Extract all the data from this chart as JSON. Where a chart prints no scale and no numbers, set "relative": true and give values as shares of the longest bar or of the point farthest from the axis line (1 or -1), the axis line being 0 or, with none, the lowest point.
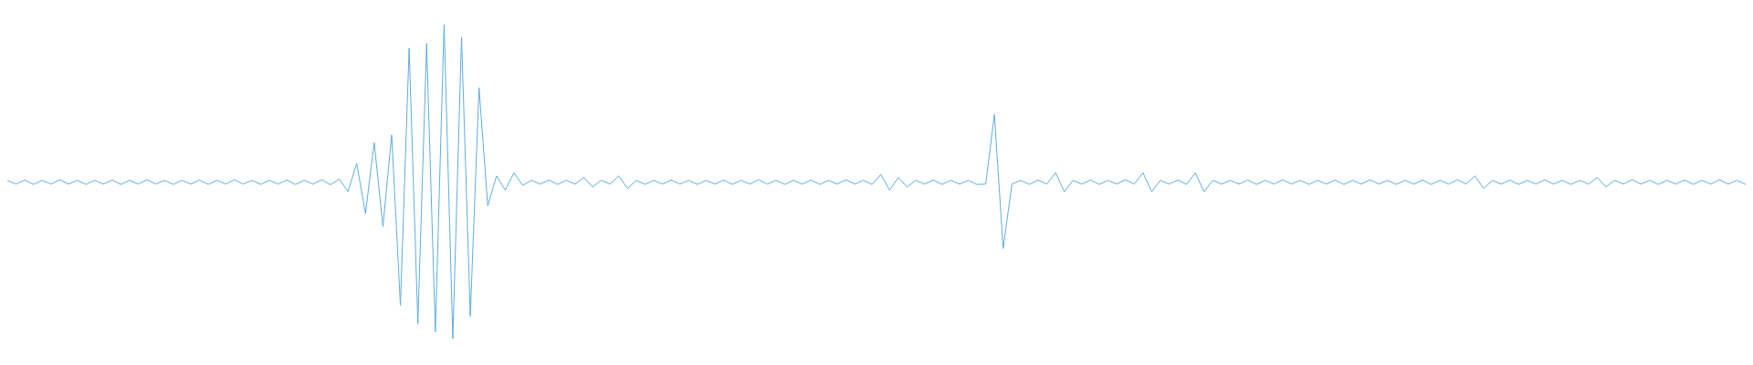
{
  "chart_data": {
    "type": "line",
    "relative": true,
    "categories": [
      null,
      null,
      null,
      null,
      null,
      null,
      null,
      null,
      null,
      null,
      null,
      null,
      null,
      null,
      null,
      null,
      null,
      null,
      null,
      null,
      null,
      null,
      null,
      null,
      null,
      null,
      null,
      null,
      null,
      null,
      null,
      null,
      null,
      null,
      null,
      null,
      null,
      null,
      null,
      null,
      null,
      null,
      null,
      null,
      null,
      null,
      null,
      null,
      null,
      null,
      null,
      null,
      null,
      null,
      null,
      null,
      null,
      null,
      null,
      null,
      null,
      null,
      null,
      null,
      null,
      null,
      null,
      null,
      null,
      null,
      null,
      null,
      null,
      null,
      null,
      null,
      null,
      null,
      null,
      null,
      null,
      null,
      null,
      null,
      null,
      null,
      null,
      null,
      null,
      null,
      null,
      null,
      null,
      null,
      null,
      null,
      null,
      null,
      null,
      null,
      null,
      null,
      null,
      null,
      null,
      null,
      null,
      null,
      null,
      null,
      null,
      null,
      null,
      null,
      null,
      null,
      null,
      null,
      null,
      null,
      null,
      null,
      null,
      null,
      null,
      null,
      null,
      null,
      null,
      null,
      null,
      null,
      null,
      null,
      null,
      null,
      null,
      null,
      null,
      null,
      null,
      null,
      null,
      null,
      null,
      null,
      null,
      null,
      null,
      null,
      null,
      null,
      null,
      null,
      null,
      null,
      null,
      null,
      null,
      null,
      null,
      null,
      null,
      null,
      null,
      null,
      null,
      null,
      null,
      null,
      null,
      null,
      null,
      null,
      null,
      null,
      null,
      null,
      null,
      null,
      null,
      null,
      null,
      null,
      null,
      null,
      null,
      null,
      null,
      null,
      null,
      null,
      null,
      null,
      null,
      null,
      null,
      null,
      null,
      null
    ],
    "series": [
      {
        "color": "#5dade2",
        "values": [
          0.504,
          0.492,
          0.505,
          0.491,
          0.504,
          0.492,
          0.506,
          0.492,
          0.504,
          0.491,
          0.504,
          0.492,
          0.505,
          0.491,
          0.504,
          0.492,
          0.506,
          0.492,
          0.504,
          0.491,
          0.504,
          0.492,
          0.505,
          0.491,
          0.504,
          0.492,
          0.506,
          0.492,
          0.504,
          0.491,
          0.504,
          0.492,
          0.505,
          0.491,
          0.504,
          0.492,
          0.506,
          0.49,
          0.508,
          0.468,
          0.558,
          0.398,
          0.624,
          0.357,
          0.649,
          0.106,
          0.925,
          0.046,
          0.94,
          0.021,
          1,
          0,
          0.96,
          0.071,
          0.799,
          0.423,
          0.518,
          0.473,
          0.528,
          0.488,
          0.504,
          0.492,
          0.505,
          0.491,
          0.504,
          0.492,
          0.513,
          0.483,
          0.504,
          0.492,
          0.518,
          0.478,
          0.504,
          0.491,
          0.504,
          0.492,
          0.505,
          0.492,
          0.504,
          0.491,
          0.504,
          0.492,
          0.505,
          0.491,
          0.504,
          0.492,
          0.506,
          0.492,
          0.504,
          0.491,
          0.504,
          0.492,
          0.505,
          0.491,
          0.504,
          0.492,
          0.506,
          0.492,
          0.504,
          0.491,
          0.523,
          0.473,
          0.513,
          0.483,
          0.504,
          0.492,
          0.505,
          0.491,
          0.504,
          0.492,
          0.504,
          0.491,
          0.492,
          0.714,
          0.287,
          0.492,
          0.504,
          0.491,
          0.505,
          0.492,
          0.528,
          0.468,
          0.504,
          0.492,
          0.505,
          0.491,
          0.504,
          0.492,
          0.506,
          0.492,
          0.528,
          0.468,
          0.504,
          0.492,
          0.505,
          0.491,
          0.528,
          0.468,
          0.504,
          0.492,
          0.504,
          0.492,
          0.505,
          0.491,
          0.504,
          0.492,
          0.506,
          0.492,
          0.504,
          0.491,
          0.504,
          0.492,
          0.505,
          0.491,
          0.504,
          0.492,
          0.506,
          0.492,
          0.504,
          0.491,
          0.504,
          0.492,
          0.505,
          0.491,
          0.504,
          0.492,
          0.506,
          0.492,
          0.518,
          0.478,
          0.504,
          0.492,
          0.505,
          0.491,
          0.504,
          0.492,
          0.506,
          0.492,
          0.504,
          0.491,
          0.504,
          0.492,
          0.513,
          0.483,
          0.504,
          0.492,
          0.506,
          0.492,
          0.504,
          0.491,
          0.504,
          0.492,
          0.505,
          0.491,
          0.504,
          0.492,
          0.506,
          0.492,
          0.504,
          0.491
        ]
      }
    ]
  }
}
